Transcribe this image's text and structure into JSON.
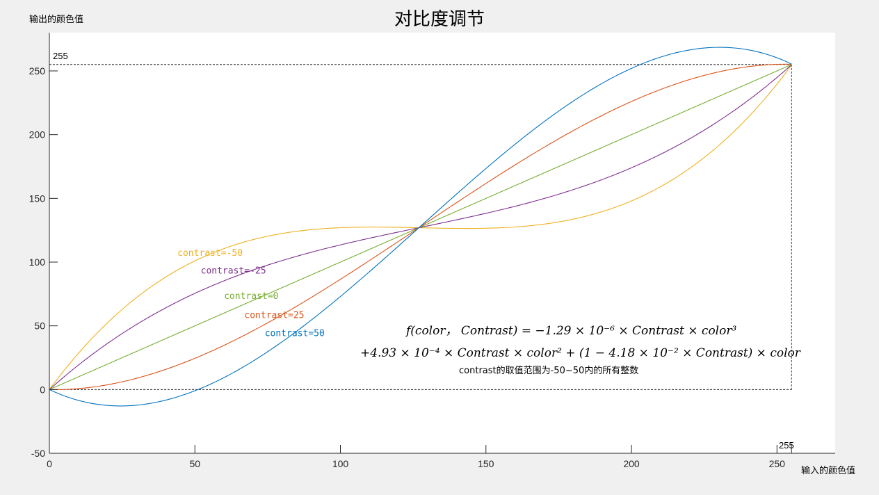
{
  "chart_data": {
    "type": "line",
    "title": "对比度调节",
    "xlabel": "输入的颜色值",
    "ylabel": "输出的颜色值",
    "xlim": [
      0,
      270
    ],
    "ylim": [
      -50,
      280
    ],
    "xticks": [
      0,
      50,
      100,
      150,
      200,
      250
    ],
    "yticks": [
      -50,
      0,
      50,
      100,
      150,
      200,
      250
    ],
    "grid": false,
    "formula": {
      "a": -1.29e-06,
      "b": 0.000493,
      "c": -0.0418,
      "domain": [
        0,
        255
      ],
      "line1": "f(color， Contrast) = −1.29 × 10⁻⁶ × Contrast × color³",
      "line2": "+4.93 × 10⁻⁴ × Contrast × color² + (1 − 4.18 × 10⁻² × Contrast) × color",
      "note": "contrast的取值范围为-50~50内的所有整数"
    },
    "series": [
      {
        "name": "contrast=-50",
        "contrast": -50,
        "color": "#EDB120",
        "label_at": [
          44,
          105
        ]
      },
      {
        "name": "contrast=-25",
        "contrast": -25,
        "color": "#7E2F8E",
        "label_at": [
          52,
          91
        ]
      },
      {
        "name": "contrast=0",
        "contrast": 0,
        "color": "#77AC30",
        "label_at": [
          60,
          71
        ]
      },
      {
        "name": "contrast=25",
        "contrast": 25,
        "color": "#D95319",
        "label_at": [
          67,
          56
        ]
      },
      {
        "name": "contrast=50",
        "contrast": 50,
        "color": "#0072BD",
        "label_at": [
          74,
          42
        ]
      }
    ],
    "reference_lines": {
      "value": 255,
      "x_label": "255",
      "y_label": "255",
      "color": "#000000"
    }
  }
}
